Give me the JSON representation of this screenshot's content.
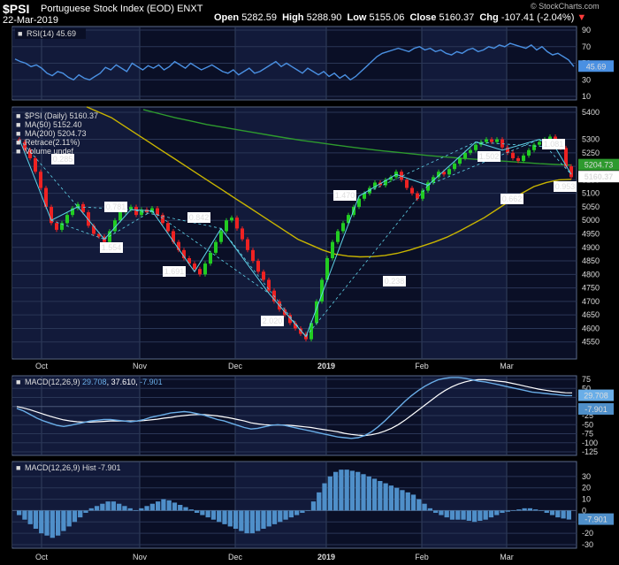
{
  "header": {
    "symbol": "$PSI",
    "name": "Portuguese Stock Index (EOD)",
    "exchange": "ENXT",
    "date": "22-Mar-2019",
    "open_label": "Open",
    "open": "5282.59",
    "high_label": "High",
    "high": "5288.90",
    "low_label": "Low",
    "low": "5155.06",
    "close_label": "Close",
    "close": "5160.37",
    "chg_label": "Chg",
    "chg": "-107.41 (-2.04%)",
    "brand": "© StockCharts.com"
  },
  "colors": {
    "up": "#22cc22",
    "down": "#ee2222",
    "rsi": "#4a90e2",
    "ma50": "#c8b400",
    "ma200": "#2e9a2e",
    "retrace": "#5fd3e8",
    "macd": "#6aaee8",
    "signal": "#ffffff",
    "hist": "#4f8fc9"
  },
  "months": [
    "Oct",
    "Nov",
    "Dec",
    "2019",
    "Feb",
    "Mar"
  ],
  "chart_data": [
    {
      "type": "line",
      "title": "RSI(14) 45.69",
      "ylim": [
        10,
        90
      ],
      "yticks": [
        90,
        70,
        50,
        30,
        10
      ],
      "last_value": "45.69",
      "series": [
        {
          "name": "RSI(14)",
          "values": [
            55,
            52,
            50,
            46,
            48,
            44,
            38,
            35,
            40,
            38,
            33,
            30,
            36,
            32,
            30,
            34,
            38,
            45,
            42,
            48,
            44,
            40,
            50,
            46,
            42,
            47,
            44,
            48,
            42,
            46,
            52,
            48,
            44,
            50,
            46,
            42,
            45,
            48,
            44,
            40,
            38,
            42,
            36,
            40,
            44,
            38,
            40,
            44,
            48,
            52,
            46,
            50,
            46,
            42,
            38,
            44,
            40,
            36,
            40,
            34,
            38,
            32,
            36,
            30,
            34,
            40,
            46,
            52,
            58,
            62,
            64,
            66,
            68,
            66,
            64,
            68,
            70,
            66,
            68,
            64,
            66,
            62,
            60,
            64,
            62,
            66,
            68,
            64,
            66,
            70,
            68,
            72,
            70,
            74,
            72,
            70,
            68,
            72,
            66,
            70,
            64,
            60,
            62,
            58,
            54,
            46
          ]
        }
      ]
    },
    {
      "type": "line",
      "title": "$PSI (Daily) 5160.37",
      "legend": [
        "$PSI (Daily) 5160.37",
        "MA(50) 5152.40",
        "MA(200) 5204.73",
        "Retrace(2.11%)",
        "Volume undef"
      ],
      "ylim": [
        4500,
        5400
      ],
      "yticks": [
        5400,
        5300,
        5250,
        5200,
        5150,
        5100,
        5050,
        5000,
        4950,
        4900,
        4850,
        4800,
        4750,
        4700,
        4650,
        4600,
        4550
      ],
      "last_close": "5160.37",
      "ma200_last": "5204.73",
      "closes": [
        5290,
        5260,
        5230,
        5180,
        5120,
        5050,
        4990,
        4965,
        4990,
        5020,
        5045,
        5060,
        5030,
        4980,
        4950,
        4940,
        4920,
        4960,
        5000,
        5030,
        5040,
        5050,
        5020,
        5040,
        5030,
        5045,
        5020,
        4990,
        4960,
        4920,
        4890,
        4860,
        4840,
        4820,
        4800,
        4840,
        4880,
        4920,
        4960,
        5000,
        5010,
        4970,
        4930,
        4890,
        4850,
        4810,
        4780,
        4740,
        4700,
        4670,
        4650,
        4620,
        4600,
        4580,
        4560,
        4620,
        4700,
        4780,
        4860,
        4920,
        4960,
        4990,
        5020,
        5050,
        5080,
        5100,
        5120,
        5140,
        5130,
        5150,
        5160,
        5180,
        5150,
        5120,
        5100,
        5080,
        5110,
        5140,
        5160,
        5180,
        5170,
        5190,
        5210,
        5230,
        5250,
        5260,
        5280,
        5290,
        5300,
        5290,
        5300,
        5270,
        5250,
        5230,
        5220,
        5240,
        5260,
        5280,
        5290,
        5300,
        5310,
        5280,
        5268,
        5200,
        5160
      ],
      "ma50": [
        5420,
        5400,
        5380,
        5350,
        5320,
        5290,
        5260,
        5230,
        5200,
        5170,
        5140,
        5110,
        5080,
        5050,
        5020,
        4990,
        4960,
        4930,
        4910,
        4890,
        4875,
        4868,
        4865,
        4866,
        4870,
        4878,
        4890,
        4905,
        4920,
        4938,
        4960,
        4985,
        5010,
        5040,
        5070,
        5100,
        5125,
        5140,
        5150,
        5152
      ],
      "ma200": [
        5410,
        5395,
        5380,
        5368,
        5355,
        5345,
        5335,
        5325,
        5315,
        5305,
        5296,
        5288,
        5280,
        5272,
        5265,
        5258,
        5252,
        5246,
        5240,
        5235,
        5230,
        5226,
        5222,
        5218,
        5214,
        5210,
        5207,
        5204.73
      ],
      "retrace_labels": [
        "0.285",
        "0.781",
        "1.554",
        "0.842",
        "1.691",
        "2.020",
        "1.470",
        "0.238",
        "1.502",
        "0.662",
        "1.081",
        "0.953"
      ]
    },
    {
      "type": "line",
      "title": "MACD(12,26,9) 29.708, 37.610, -7.901",
      "ylim": [
        -125,
        75
      ],
      "yticks": [
        75,
        50,
        25,
        0,
        -25,
        -50,
        -75,
        -100,
        -125
      ],
      "series": [
        {
          "name": "MACD",
          "last": "29.708",
          "values": [
            -5,
            -12,
            -22,
            -32,
            -40,
            -46,
            -52,
            -55,
            -52,
            -48,
            -44,
            -40,
            -38,
            -36,
            -36,
            -38,
            -40,
            -42,
            -40,
            -36,
            -30,
            -26,
            -22,
            -18,
            -16,
            -14,
            -16,
            -20,
            -24,
            -30,
            -36,
            -40,
            -46,
            -52,
            -58,
            -62,
            -60,
            -56,
            -52,
            -50,
            -52,
            -56,
            -60,
            -64,
            -68,
            -72,
            -76,
            -80,
            -84,
            -86,
            -88,
            -86,
            -80,
            -70,
            -56,
            -40,
            -22,
            -4,
            14,
            30,
            44,
            56,
            66,
            74,
            78,
            80,
            80,
            78,
            74,
            70,
            68,
            64,
            60,
            56,
            52,
            48,
            44,
            40,
            38,
            36,
            34,
            32,
            30,
            30
          ]
        },
        {
          "name": "Signal",
          "last": "37.610",
          "values": [
            0,
            -4,
            -9,
            -15,
            -21,
            -27,
            -32,
            -37,
            -40,
            -42,
            -43,
            -43,
            -42,
            -41,
            -40,
            -40,
            -40,
            -40,
            -40,
            -39,
            -37,
            -35,
            -32,
            -30,
            -27,
            -25,
            -23,
            -22,
            -22,
            -24,
            -26,
            -29,
            -32,
            -36,
            -40,
            -45,
            -48,
            -50,
            -51,
            -51,
            -51,
            -52,
            -54,
            -56,
            -58,
            -61,
            -64,
            -67,
            -70,
            -74,
            -77,
            -79,
            -80,
            -78,
            -74,
            -68,
            -60,
            -50,
            -38,
            -24,
            -10,
            4,
            18,
            32,
            44,
            54,
            62,
            68,
            72,
            74,
            74,
            72,
            70,
            68,
            64,
            60,
            56,
            52,
            48,
            45,
            42,
            40,
            38,
            37.61
          ]
        },
        {
          "name": "Hist",
          "last": "-7.901"
        }
      ]
    },
    {
      "type": "bar",
      "title": "MACD(12,26,9) Hist -7.901",
      "ylim": [
        -30,
        40
      ],
      "yticks": [
        30,
        20,
        10,
        0,
        -10,
        -20,
        -30
      ],
      "last_value": "-7.901",
      "values": [
        -4,
        -8,
        -12,
        -16,
        -20,
        -22,
        -24,
        -22,
        -18,
        -14,
        -10,
        -6,
        -2,
        2,
        4,
        6,
        8,
        8,
        6,
        4,
        2,
        0,
        2,
        4,
        6,
        8,
        10,
        9,
        7,
        5,
        3,
        1,
        -2,
        -4,
        -6,
        -8,
        -10,
        -12,
        -14,
        -16,
        -18,
        -20,
        -20,
        -18,
        -16,
        -14,
        -12,
        -10,
        -8,
        -6,
        -4,
        -2,
        0,
        8,
        16,
        24,
        30,
        34,
        36,
        36,
        35,
        34,
        32,
        30,
        28,
        26,
        24,
        22,
        20,
        18,
        16,
        14,
        10,
        6,
        2,
        -2,
        -4,
        -6,
        -8,
        -8,
        -8,
        -9,
        -10,
        -9,
        -8,
        -6,
        -4,
        -2,
        -1,
        0,
        1,
        2,
        2,
        1,
        0,
        -2,
        -4,
        -6,
        -7,
        -7.901
      ]
    }
  ]
}
